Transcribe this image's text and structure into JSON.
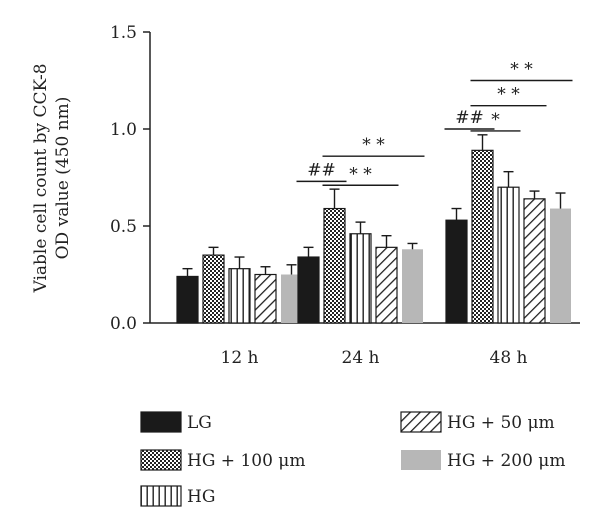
{
  "chart_data": {
    "type": "bar",
    "title": "",
    "xlabel": "",
    "ylabel": [
      "Viable cell count by CCK-8",
      "OD value (450 nm)"
    ],
    "ylim": [
      0,
      1.5
    ],
    "yticks": [
      "0.0",
      "0.5",
      "1.0",
      "1.5"
    ],
    "grid": false,
    "categories": [
      "12 h",
      "24 h",
      "48 h"
    ],
    "series": [
      {
        "name": "LG",
        "pattern": "solid-black",
        "values": [
          0.24,
          0.34,
          0.53
        ],
        "errors": [
          0.04,
          0.05,
          0.06
        ]
      },
      {
        "name": "HG + 100 μm",
        "pattern": "crosshatch",
        "values": [
          0.35,
          0.59,
          0.89
        ],
        "errors": [
          0.04,
          0.1,
          0.08
        ]
      },
      {
        "name": "HG",
        "pattern": "vertical-lines",
        "values": [
          0.28,
          0.46,
          0.7
        ],
        "errors": [
          0.06,
          0.06,
          0.08
        ]
      },
      {
        "name": "HG + 50 μm",
        "pattern": "diagonal-lines",
        "values": [
          0.25,
          0.39,
          0.64
        ],
        "errors": [
          0.04,
          0.06,
          0.04
        ]
      },
      {
        "name": "HG + 200 μm",
        "pattern": "solid-gray",
        "values": [
          0.25,
          0.38,
          0.59
        ],
        "errors": [
          0.05,
          0.03,
          0.08
        ]
      }
    ],
    "legend_placement": "bottom",
    "significance": [
      {
        "group": 1,
        "label": "##",
        "from": 0,
        "to": 1,
        "y": 0.73
      },
      {
        "group": 1,
        "label": "* *",
        "from": 1,
        "to": 3,
        "y": 0.71
      },
      {
        "group": 1,
        "label": "* *",
        "from": 1,
        "to": 4,
        "y": 0.86
      },
      {
        "group": 2,
        "label": "##",
        "from": 0,
        "to": 1,
        "y": 1.0
      },
      {
        "group": 2,
        "label": "*",
        "from": 1,
        "to": 2,
        "y": 0.99
      },
      {
        "group": 2,
        "label": "* *",
        "from": 1,
        "to": 3,
        "y": 1.12
      },
      {
        "group": 2,
        "label": "* *",
        "from": 1,
        "to": 4,
        "y": 1.25
      }
    ]
  },
  "legend": [
    {
      "label": "LG",
      "pattern": "solid-black"
    },
    {
      "label": "HG + 50 μm",
      "pattern": "diagonal-lines"
    },
    {
      "label": "HG + 100 μm",
      "pattern": "crosshatch"
    },
    {
      "label": "HG + 200 μm",
      "pattern": "solid-gray"
    },
    {
      "label": "HG",
      "pattern": "vertical-lines"
    }
  ]
}
